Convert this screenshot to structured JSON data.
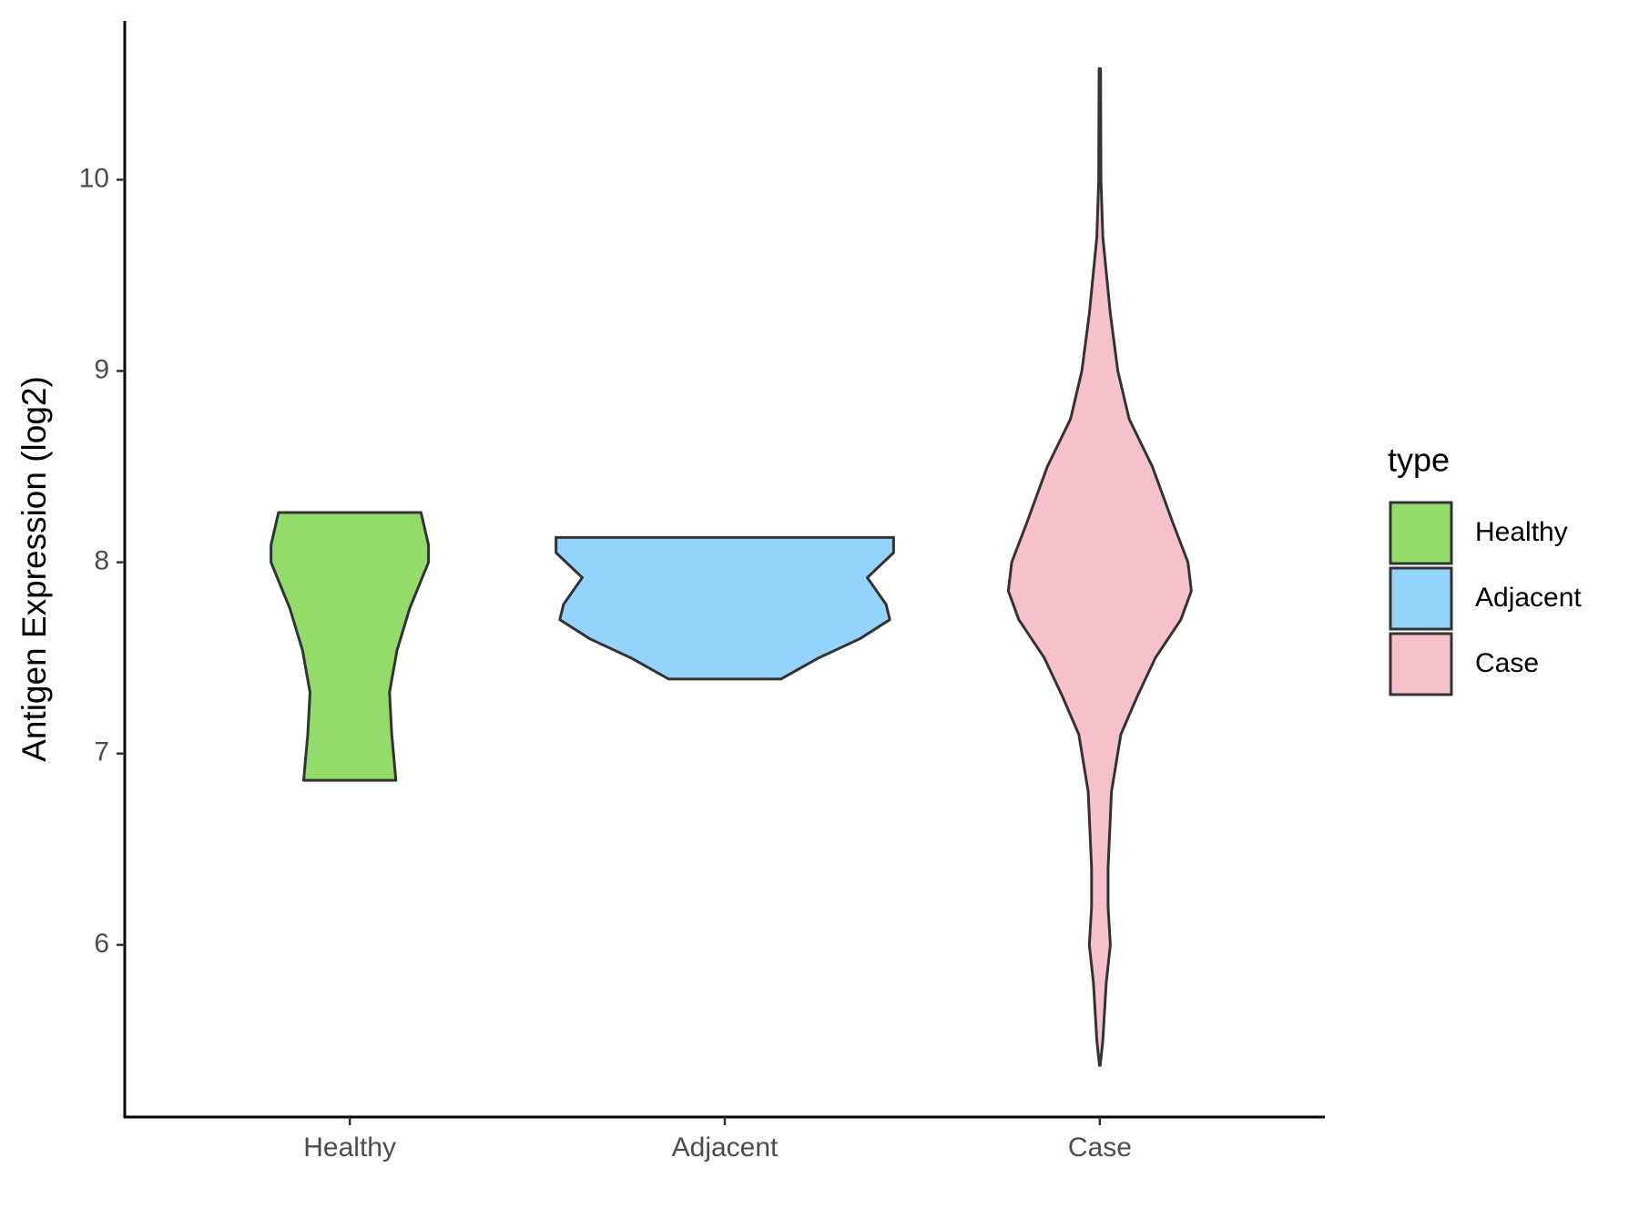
{
  "chart_data": {
    "type": "violin",
    "y_label": "Antigen Expression (log2)",
    "categories": [
      "Healthy",
      "Adjacent",
      "Case"
    ],
    "legend_title": "type",
    "legend": "right",
    "ylim": [
      5.1,
      10.83
    ],
    "yticks": [
      6,
      7,
      8,
      9,
      10
    ],
    "series": [
      {
        "name": "Healthy",
        "color": "#93dc6a",
        "y": [
          8.26,
          8.09,
          8.0,
          7.76,
          7.54,
          7.32,
          7.1,
          6.86
        ],
        "half_width": [
          0.19,
          0.21,
          0.21,
          0.16,
          0.126,
          0.106,
          0.112,
          0.123
        ]
      },
      {
        "name": "Adjacent",
        "color": "#94d3fb",
        "y": [
          8.13,
          8.05,
          7.92,
          7.78,
          7.7,
          7.6,
          7.5,
          7.39
        ],
        "half_width": [
          0.45,
          0.45,
          0.38,
          0.43,
          0.44,
          0.36,
          0.25,
          0.15
        ]
      },
      {
        "name": "Case",
        "color": "#f7c1cb",
        "y": [
          10.58,
          10.0,
          9.7,
          9.3,
          9.0,
          8.75,
          8.5,
          8.2,
          8.0,
          7.85,
          7.7,
          7.5,
          7.3,
          7.1,
          6.8,
          6.4,
          6.2,
          6.0,
          5.8,
          5.5,
          5.37
        ],
        "half_width": [
          0.002,
          0.003,
          0.008,
          0.028,
          0.048,
          0.078,
          0.14,
          0.196,
          0.235,
          0.244,
          0.216,
          0.148,
          0.1,
          0.056,
          0.031,
          0.022,
          0.022,
          0.028,
          0.017,
          0.008,
          0.001
        ]
      }
    ]
  }
}
